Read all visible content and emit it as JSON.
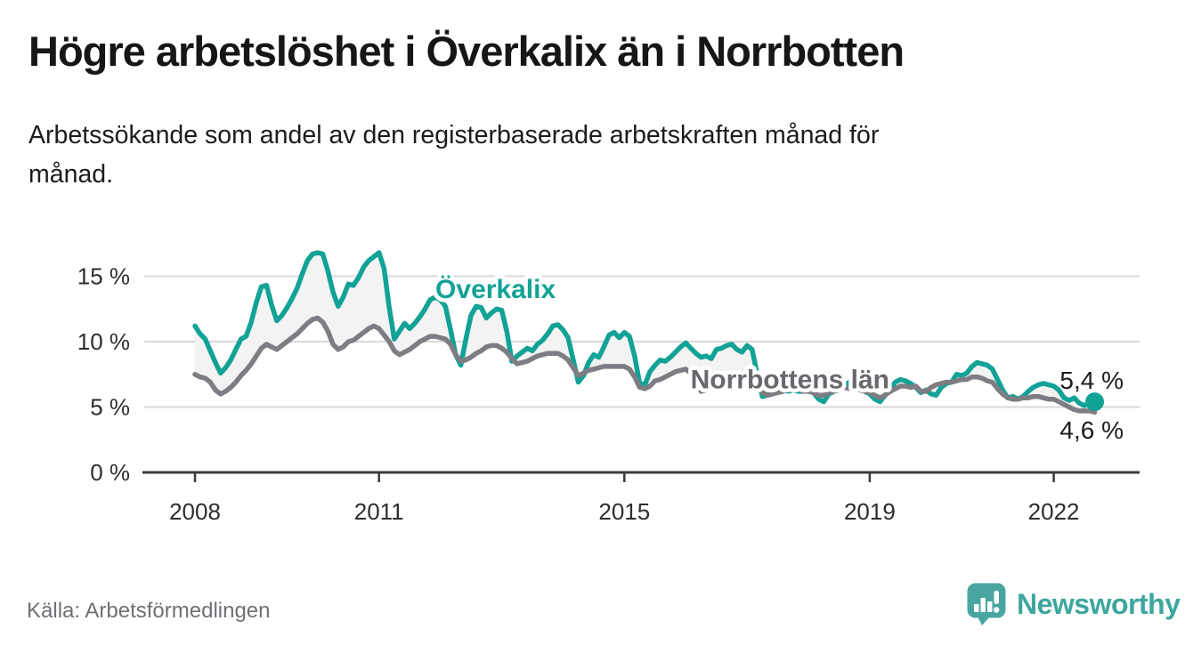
{
  "header": {
    "title": "Högre arbetslöshet i Överkalix än i Norrbotten",
    "subtitle_lines": [
      "Arbetssökande som andel av den registerbaserade arbetskraften månad för",
      "månad."
    ]
  },
  "chart_data": {
    "type": "line",
    "title": "Högre arbetslöshet i Överkalix än i Norrbotten",
    "subtitle": "Arbetssökande som andel av den registerbaserade arbetskraften månad för månad.",
    "unit": "%",
    "x_start_year": 2008,
    "interval_months": 1,
    "x_ticks": [
      2008,
      2011,
      2015,
      2019,
      2022
    ],
    "x_tick_labels": [
      "2008",
      "2011",
      "2015",
      "2019",
      "2022"
    ],
    "y_ticks": [
      0,
      5,
      10,
      15
    ],
    "y_tick_labels": [
      "0 %",
      "5 %",
      "10 %",
      "15 %"
    ],
    "ylim": [
      0,
      17.5
    ],
    "xlim": [
      2008.0,
      2022.67
    ],
    "grid": "horizontal",
    "legend": "inline-labels",
    "series": [
      {
        "name": "Överkalix",
        "color": "#12a296",
        "end_label": "5,4 %",
        "latest_value": 5.4,
        "end_dot": true,
        "label_pos": {
          "year": 2012.9,
          "value": 14.0
        },
        "values": [
          11.2,
          10.6,
          10.2,
          9.3,
          8.4,
          7.6,
          8.0,
          8.6,
          9.4,
          10.2,
          10.4,
          11.5,
          13.0,
          14.2,
          14.3,
          12.8,
          11.6,
          12.0,
          12.6,
          13.3,
          14.1,
          15.2,
          16.2,
          16.7,
          16.8,
          16.7,
          15.4,
          13.8,
          12.7,
          13.4,
          14.4,
          14.3,
          14.9,
          15.7,
          16.2,
          16.5,
          16.8,
          15.6,
          12.6,
          10.2,
          10.8,
          11.4,
          11.0,
          11.4,
          11.9,
          12.5,
          13.2,
          13.4,
          13.2,
          12.7,
          10.9,
          9.0,
          8.2,
          10.2,
          12.0,
          12.7,
          12.6,
          11.8,
          12.2,
          12.5,
          12.4,
          10.8,
          8.5,
          8.9,
          9.2,
          9.5,
          9.3,
          9.8,
          10.1,
          10.6,
          11.2,
          11.3,
          10.9,
          10.3,
          8.6,
          6.9,
          7.4,
          8.4,
          9.0,
          8.8,
          9.6,
          10.5,
          10.7,
          10.3,
          10.7,
          10.4,
          8.9,
          6.8,
          6.7,
          7.7,
          8.2,
          8.6,
          8.5,
          8.8,
          9.2,
          9.6,
          9.9,
          9.5,
          9.1,
          8.8,
          8.9,
          8.7,
          9.4,
          9.5,
          9.7,
          9.8,
          9.4,
          9.2,
          9.7,
          9.4,
          7.5,
          5.8,
          5.9,
          6.2,
          6.4,
          6.3,
          6.2,
          6.3,
          6.2,
          6.2,
          6.3,
          6.1,
          5.6,
          5.4,
          6.0,
          6.2,
          6.3,
          6.6,
          6.9,
          6.7,
          6.4,
          6.2,
          6.0,
          5.6,
          5.4,
          5.9,
          6.4,
          6.9,
          7.1,
          7.0,
          6.8,
          6.5,
          6.1,
          6.3,
          6.0,
          5.9,
          6.5,
          6.8,
          6.9,
          7.5,
          7.4,
          7.6,
          8.1,
          8.4,
          8.3,
          8.2,
          7.9,
          7.1,
          6.3,
          5.7,
          5.8,
          5.6,
          5.8,
          6.2,
          6.5,
          6.7,
          6.8,
          6.7,
          6.6,
          6.3,
          5.7,
          5.5,
          5.7,
          5.3,
          5.1,
          5.3,
          5.4
        ]
      },
      {
        "name": "Norrbottens län",
        "color": "#7d7d83",
        "label_color": "#68686e",
        "end_label": "4,6 %",
        "latest_value": 4.6,
        "end_dot": false,
        "label_pos": {
          "year": 2017.7,
          "value": 7.1
        },
        "values": [
          7.5,
          7.3,
          7.2,
          6.9,
          6.3,
          6.0,
          6.2,
          6.5,
          6.9,
          7.4,
          7.8,
          8.3,
          8.9,
          9.5,
          9.8,
          9.6,
          9.4,
          9.7,
          10.0,
          10.3,
          10.6,
          11.0,
          11.4,
          11.7,
          11.8,
          11.5,
          10.8,
          9.8,
          9.4,
          9.6,
          10.0,
          10.1,
          10.4,
          10.7,
          11.0,
          11.2,
          11.0,
          10.5,
          10.0,
          9.3,
          9.0,
          9.2,
          9.4,
          9.7,
          10.0,
          10.2,
          10.4,
          10.4,
          10.3,
          10.2,
          9.8,
          9.0,
          8.5,
          8.6,
          8.8,
          9.1,
          9.3,
          9.6,
          9.7,
          9.7,
          9.5,
          9.2,
          8.7,
          8.3,
          8.4,
          8.5,
          8.7,
          8.9,
          9.0,
          9.1,
          9.1,
          9.1,
          8.9,
          8.6,
          8.0,
          7.4,
          7.6,
          7.8,
          7.9,
          8.0,
          8.1,
          8.1,
          8.1,
          8.1,
          8.1,
          7.9,
          7.3,
          6.5,
          6.4,
          6.6,
          7.0,
          7.1,
          7.3,
          7.5,
          7.7,
          7.8,
          7.9,
          7.6,
          6.8,
          6.2,
          6.3,
          6.6,
          6.9,
          7.1,
          7.3,
          7.4,
          7.5,
          7.6,
          7.6,
          7.3,
          6.7,
          6.1,
          5.9,
          6.0,
          6.1,
          6.2,
          6.3,
          6.4,
          6.4,
          6.2,
          6.2,
          6.1,
          5.9,
          5.9,
          6.1,
          6.2,
          6.4,
          6.5,
          6.4,
          6.4,
          6.3,
          6.2,
          6.1,
          5.9,
          5.7,
          5.9,
          6.2,
          6.4,
          6.6,
          6.6,
          6.5,
          6.6,
          6.2,
          6.2,
          6.5,
          6.7,
          6.8,
          6.9,
          6.9,
          7.0,
          7.1,
          7.1,
          7.3,
          7.3,
          7.2,
          7.0,
          6.9,
          6.4,
          6.0,
          5.7,
          5.6,
          5.6,
          5.7,
          5.7,
          5.8,
          5.8,
          5.7,
          5.6,
          5.6,
          5.4,
          5.2,
          5.0,
          4.8,
          4.7,
          4.7,
          4.7,
          4.6
        ]
      }
    ]
  },
  "footer": {
    "source": "Källa: Arbetsförmedlingen",
    "brand_name": "Newsworthy",
    "logo_icon": "speech-bubble-bar-chart"
  },
  "colors": {
    "overkalix_line": "#12a296",
    "norrbotten_line": "#7d7d83",
    "norrbotten_label": "#68686e",
    "gap_band": "#f3f3f3",
    "gridline": "#d9d9d9",
    "axis": "#3a3a3e",
    "brand_teal": "#3da69e",
    "value_label": "#1b1b1b"
  }
}
